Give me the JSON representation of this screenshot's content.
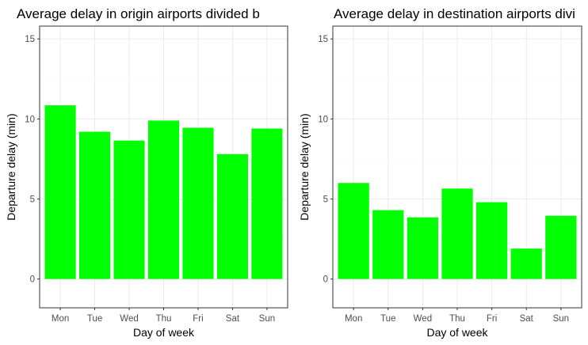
{
  "chart_data": [
    {
      "type": "bar",
      "title": "Average delay in origin airports divided b",
      "xlabel": "Day of week",
      "ylabel": "Departure delay (min)",
      "categories": [
        "Mon",
        "Tue",
        "Wed",
        "Thu",
        "Fri",
        "Sat",
        "Sun"
      ],
      "values": [
        10.85,
        9.2,
        8.65,
        9.9,
        9.45,
        7.8,
        9.4
      ],
      "ylim": [
        -1.8,
        15.8
      ],
      "yticks": [
        0,
        5,
        10,
        15
      ],
      "ytick_labels": [
        "0",
        "5",
        "10",
        "15"
      ],
      "bar_color": "#00ff00",
      "grid": true
    },
    {
      "type": "bar",
      "title": "Average delay in destination airports divi",
      "xlabel": "Day of week",
      "ylabel": "Departure delay (min)",
      "categories": [
        "Mon",
        "Tue",
        "Wed",
        "Thu",
        "Fri",
        "Sat",
        "Sun"
      ],
      "values": [
        6.0,
        4.3,
        3.85,
        5.65,
        4.8,
        1.9,
        3.95
      ],
      "ylim": [
        -1.8,
        15.8
      ],
      "yticks": [
        0,
        5,
        10,
        15
      ],
      "ytick_labels": [
        "0",
        "5",
        "10",
        "15"
      ],
      "bar_color": "#00ff00",
      "grid": true
    }
  ]
}
